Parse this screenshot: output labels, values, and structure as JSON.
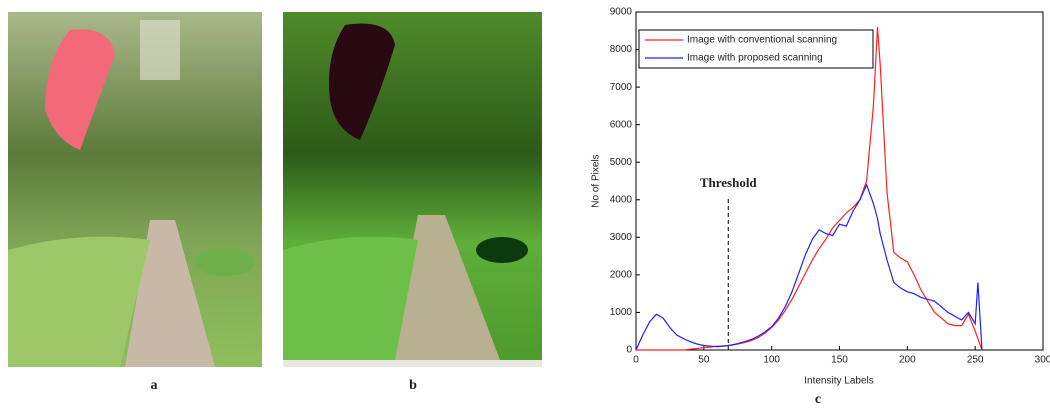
{
  "panel_labels": [
    "a",
    "b",
    "c"
  ],
  "chart_data": {
    "type": "line",
    "x_label": "Intensity Labels",
    "y_label": "No of Pixels",
    "x": [
      0,
      5,
      10,
      15,
      20,
      25,
      30,
      35,
      40,
      45,
      50,
      55,
      60,
      65,
      70,
      75,
      80,
      85,
      90,
      95,
      100,
      105,
      110,
      115,
      120,
      125,
      130,
      135,
      140,
      145,
      150,
      155,
      160,
      165,
      170,
      175,
      178,
      180,
      185,
      190,
      195,
      200,
      205,
      210,
      215,
      220,
      225,
      230,
      235,
      240,
      245,
      250,
      252,
      255
    ],
    "series": [
      {
        "name": "Image with conventional scanning",
        "color": "#ff2020",
        "values": [
          0,
          0,
          0,
          0,
          0,
          0,
          0,
          0,
          20,
          40,
          60,
          80,
          100,
          110,
          130,
          160,
          200,
          250,
          330,
          450,
          600,
          800,
          1050,
          1350,
          1700,
          2050,
          2400,
          2700,
          2950,
          3250,
          3450,
          3650,
          3800,
          4000,
          4500,
          6500,
          8600,
          7600,
          4200,
          2600,
          2450,
          2350,
          2000,
          1600,
          1300,
          1000,
          850,
          700,
          650,
          650,
          950,
          500,
          300,
          0
        ]
      },
      {
        "name": "Image with proposed scanning",
        "color": "#2020ff",
        "values": [
          0,
          400,
          750,
          950,
          850,
          600,
          400,
          300,
          220,
          160,
          120,
          100,
          90,
          100,
          130,
          170,
          220,
          280,
          370,
          480,
          620,
          850,
          1150,
          1550,
          2050,
          2550,
          2950,
          3200,
          3100,
          3050,
          3350,
          3300,
          3700,
          4000,
          4400,
          3900,
          3500,
          3100,
          2400,
          1800,
          1650,
          1550,
          1500,
          1400,
          1350,
          1300,
          1150,
          1000,
          900,
          800,
          1000,
          700,
          1800,
          0
        ]
      }
    ],
    "xlim": [
      0,
      300
    ],
    "xticks": [
      0,
      50,
      100,
      150,
      200,
      250,
      300
    ],
    "ylim": [
      0,
      9000
    ],
    "yticks": [
      0,
      1000,
      2000,
      3000,
      4000,
      5000,
      6000,
      7000,
      8000,
      9000
    ],
    "legend": "upper-left",
    "threshold": {
      "label": "Threshold",
      "x": 68,
      "top": 4100
    }
  }
}
